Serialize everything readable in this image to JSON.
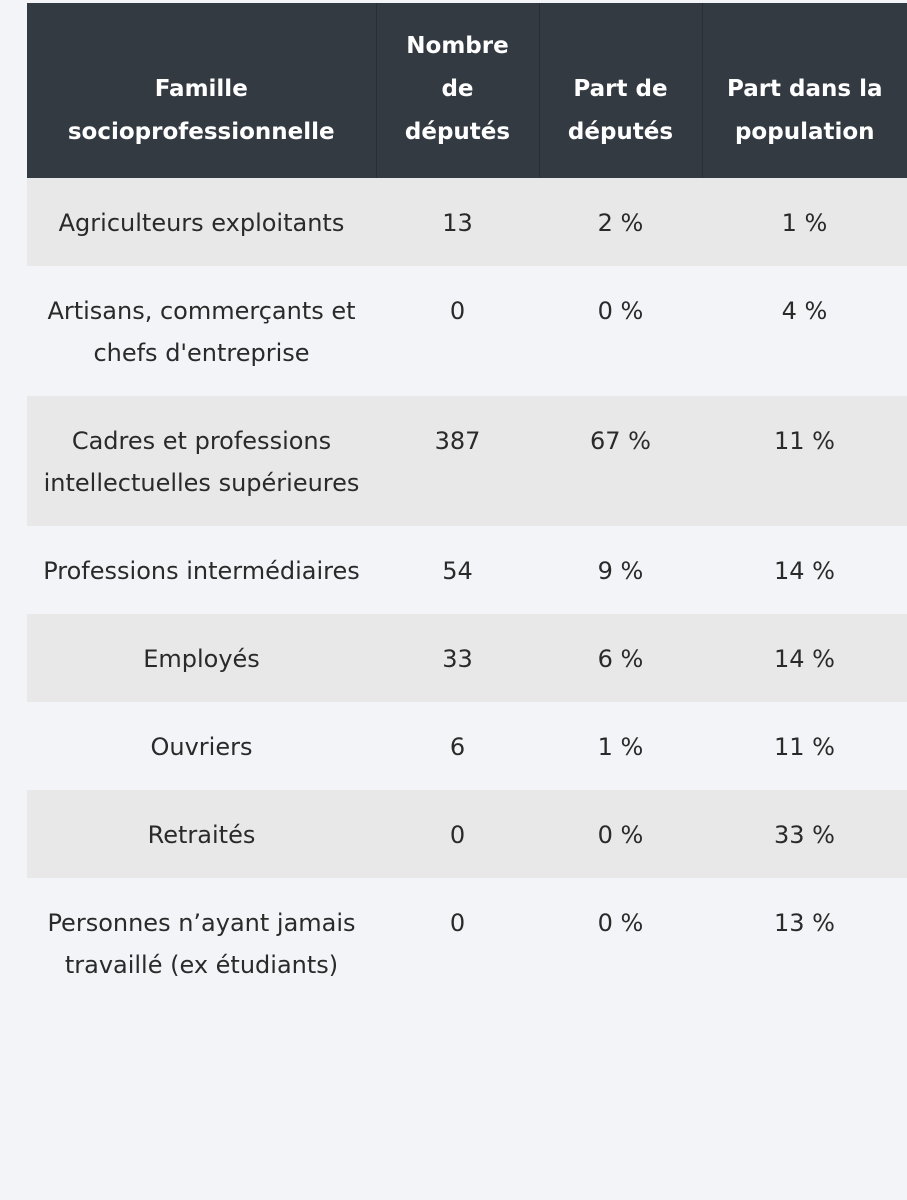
{
  "table": {
    "header": [
      "Famille socioprofessionnelle",
      "Nombre de députés",
      "Part de députés",
      "Part dans la population"
    ],
    "rows": [
      [
        "Agriculteurs exploitants",
        "13",
        "2 %",
        "1 %"
      ],
      [
        "Artisans, commerçants et chefs d'entreprise",
        "0",
        "0 %",
        "4 %"
      ],
      [
        "Cadres et professions intellectuelles supérieures",
        "387",
        "67 %",
        "11 %"
      ],
      [
        "Professions intermédiaires",
        "54",
        "9 %",
        "14 %"
      ],
      [
        "Employés",
        "33",
        "6 %",
        "14 %"
      ],
      [
        "Ouvriers",
        "6",
        "1 %",
        "11 %"
      ],
      [
        "Retraités",
        "0",
        "0 %",
        "33 %"
      ],
      [
        "Personnes n’ayant jamais travaillé (ex étudiants)",
        "0",
        "0 %",
        "13 %"
      ]
    ]
  }
}
